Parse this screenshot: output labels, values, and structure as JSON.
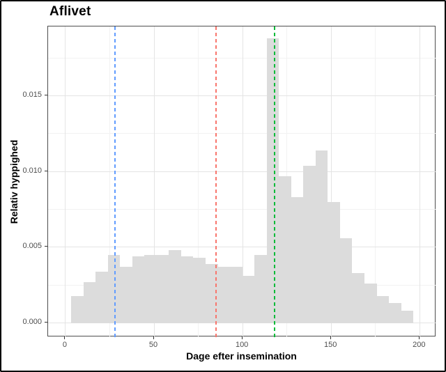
{
  "frame": {
    "background": "#ffffff",
    "border_color": "#000000"
  },
  "chart_data": {
    "type": "bar",
    "subtype": "histogram",
    "title": "Aflivet",
    "xlabel": "Dage efter insemination",
    "ylabel": "Relativ hyppighed",
    "bar_fill": "#dcdcdc",
    "grid": true,
    "legend_position": "none",
    "bin_start": 3.2,
    "bin_width": 6.9,
    "bin_heights": [
      0.0018,
      0.0027,
      0.0034,
      0.0045,
      0.0037,
      0.0044,
      0.0045,
      0.0045,
      0.0048,
      0.0044,
      0.0043,
      0.0039,
      0.0037,
      0.0037,
      0.0031,
      0.0045,
      0.0188,
      0.0097,
      0.0083,
      0.0104,
      0.0114,
      0.008,
      0.0056,
      0.0033,
      0.0026,
      0.0018,
      0.0013,
      0.0008
    ],
    "vlines": [
      {
        "name": "blue-dashed-vline",
        "x": 28,
        "color": "#619cff",
        "style": "dashed"
      },
      {
        "name": "red-dashed-vline",
        "x": 85,
        "color": "#f8766d",
        "style": "dashed"
      },
      {
        "name": "green-dashed-vline",
        "x": 118,
        "color": "#00ba38",
        "style": "dashed"
      }
    ],
    "x_ticks": [
      0,
      50,
      100,
      150,
      200
    ],
    "x_tick_labels": [
      "0",
      "50",
      "100",
      "150",
      "200"
    ],
    "x_minor_breaks": [
      25,
      75,
      125,
      175
    ],
    "y_ticks": [
      0,
      0.005,
      0.01,
      0.015
    ],
    "y_tick_labels": [
      "0.000",
      "0.005",
      "0.010",
      "0.015"
    ],
    "y_minor_breaks": [
      0.0025,
      0.0075,
      0.0125,
      0.0175
    ],
    "xlim": [
      -9.8,
      209.3
    ],
    "ylim": [
      -0.00093,
      0.01957
    ]
  }
}
